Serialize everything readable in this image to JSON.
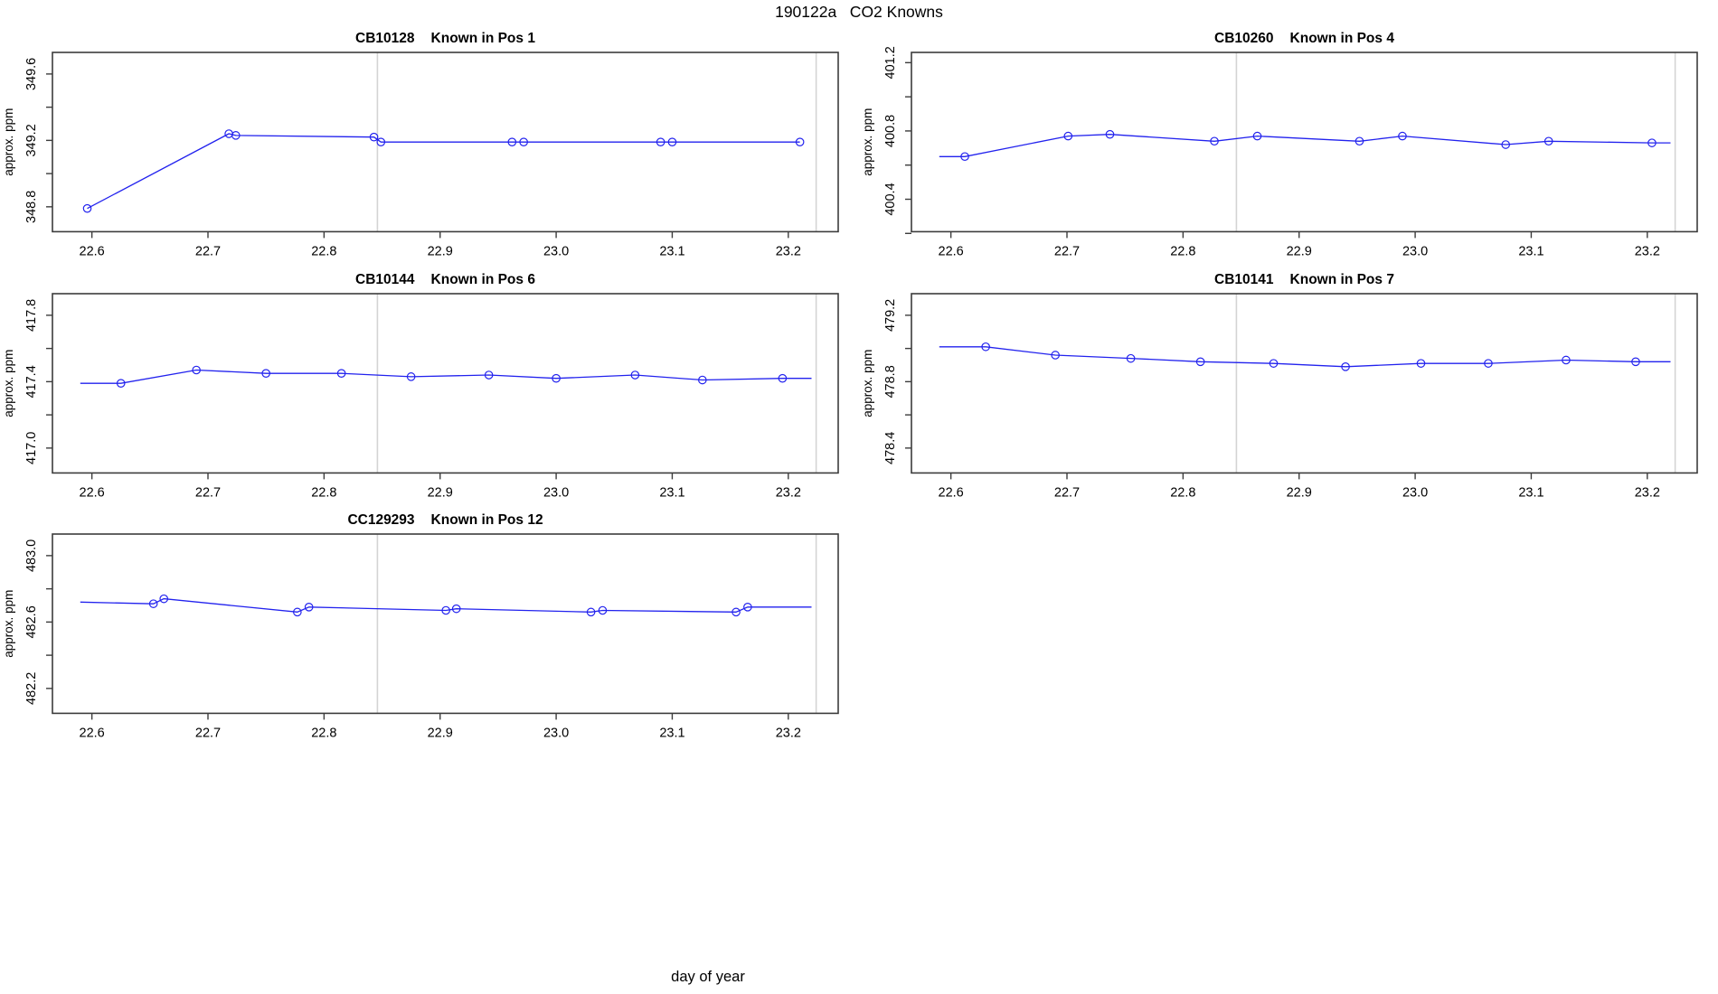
{
  "figure": {
    "title": "190122a   CO2 Knowns",
    "xlabel": "day of year",
    "ylabel": "approx. ppm",
    "line_color": "#2222ee",
    "vline_color": "#d4d4d4",
    "border_color": "#3c3c3c"
  },
  "chart_data": [
    {
      "type": "line",
      "title_id": "CB10128",
      "title_label": "Known in Pos 1",
      "slot": {
        "row": 0,
        "col": 0
      },
      "xlim": [
        22.566,
        23.243
      ],
      "ylim": [
        348.65,
        349.73
      ],
      "x_ticks": [
        22.6,
        22.7,
        22.8,
        22.9,
        23.0,
        23.1,
        23.2
      ],
      "y_ticks": [
        348.8,
        349.0,
        349.2,
        349.4,
        349.6
      ],
      "y_labeled_ticks": [
        348.8,
        349.2,
        349.6
      ],
      "vlines": [
        22.846,
        23.224
      ],
      "points": [
        [
          22.596,
          348.79
        ],
        [
          22.718,
          349.24
        ],
        [
          22.724,
          349.23
        ],
        [
          22.843,
          349.22
        ],
        [
          22.849,
          349.19
        ],
        [
          22.962,
          349.19
        ],
        [
          22.972,
          349.19
        ],
        [
          23.09,
          349.19
        ],
        [
          23.1,
          349.19
        ],
        [
          23.21,
          349.19
        ]
      ],
      "line_ext": {
        "start": null,
        "end": null
      }
    },
    {
      "type": "line",
      "title_id": "CB10260",
      "title_label": "Known in Pos 4",
      "slot": {
        "row": 0,
        "col": 1
      },
      "xlim": [
        22.566,
        23.243
      ],
      "ylim": [
        400.21,
        401.26
      ],
      "x_ticks": [
        22.6,
        22.7,
        22.8,
        22.9,
        23.0,
        23.1,
        23.2
      ],
      "y_ticks": [
        400.2,
        400.4,
        400.6,
        400.8,
        401.0,
        401.2
      ],
      "y_labeled_ticks": [
        400.4,
        400.8,
        401.2
      ],
      "vlines": [
        22.846,
        23.224
      ],
      "points": [
        [
          22.612,
          400.65
        ],
        [
          22.701,
          400.77
        ],
        [
          22.737,
          400.78
        ],
        [
          22.827,
          400.74
        ],
        [
          22.864,
          400.77
        ],
        [
          22.952,
          400.74
        ],
        [
          22.989,
          400.77
        ],
        [
          23.078,
          400.72
        ],
        [
          23.115,
          400.74
        ],
        [
          23.204,
          400.73
        ]
      ],
      "line_ext": {
        "start": [
          22.59,
          400.65
        ],
        "end": [
          23.22,
          400.73
        ]
      }
    },
    {
      "type": "line",
      "title_id": "CB10144",
      "title_label": "Known in Pos 6",
      "slot": {
        "row": 1,
        "col": 0
      },
      "xlim": [
        22.566,
        23.243
      ],
      "ylim": [
        416.85,
        417.93
      ],
      "x_ticks": [
        22.6,
        22.7,
        22.8,
        22.9,
        23.0,
        23.1,
        23.2
      ],
      "y_ticks": [
        417.0,
        417.2,
        417.4,
        417.6,
        417.8
      ],
      "y_labeled_ticks": [
        417.0,
        417.4,
        417.8
      ],
      "vlines": [
        22.846,
        23.224
      ],
      "points": [
        [
          22.625,
          417.39
        ],
        [
          22.69,
          417.47
        ],
        [
          22.75,
          417.45
        ],
        [
          22.815,
          417.45
        ],
        [
          22.875,
          417.43
        ],
        [
          22.942,
          417.44
        ],
        [
          23.0,
          417.42
        ],
        [
          23.068,
          417.44
        ],
        [
          23.126,
          417.41
        ],
        [
          23.195,
          417.42
        ]
      ],
      "line_ext": {
        "start": [
          22.59,
          417.39
        ],
        "end": [
          23.22,
          417.42
        ]
      }
    },
    {
      "type": "line",
      "title_id": "CB10141",
      "title_label": "Known in Pos 7",
      "slot": {
        "row": 1,
        "col": 1
      },
      "xlim": [
        22.566,
        23.243
      ],
      "ylim": [
        478.25,
        479.33
      ],
      "x_ticks": [
        22.6,
        22.7,
        22.8,
        22.9,
        23.0,
        23.1,
        23.2
      ],
      "y_ticks": [
        478.4,
        478.6,
        478.8,
        479.0,
        479.2
      ],
      "y_labeled_ticks": [
        478.4,
        478.8,
        479.2
      ],
      "vlines": [
        22.846,
        23.224
      ],
      "points": [
        [
          22.63,
          479.01
        ],
        [
          22.69,
          478.96
        ],
        [
          22.755,
          478.94
        ],
        [
          22.815,
          478.92
        ],
        [
          22.878,
          478.91
        ],
        [
          22.94,
          478.89
        ],
        [
          23.005,
          478.91
        ],
        [
          23.063,
          478.91
        ],
        [
          23.13,
          478.93
        ],
        [
          23.19,
          478.92
        ]
      ],
      "line_ext": {
        "start": [
          22.59,
          479.01
        ],
        "end": [
          23.22,
          478.92
        ]
      }
    },
    {
      "type": "line",
      "title_id": "CC129293",
      "title_label": "Known in Pos 12",
      "slot": {
        "row": 2,
        "col": 0
      },
      "xlim": [
        22.566,
        23.243
      ],
      "ylim": [
        482.05,
        483.13
      ],
      "x_ticks": [
        22.6,
        22.7,
        22.8,
        22.9,
        23.0,
        23.1,
        23.2
      ],
      "y_ticks": [
        482.2,
        482.4,
        482.6,
        482.8,
        483.0
      ],
      "y_labeled_ticks": [
        482.2,
        482.6,
        483.0
      ],
      "vlines": [
        22.846,
        23.224
      ],
      "points": [
        [
          22.653,
          482.71
        ],
        [
          22.662,
          482.74
        ],
        [
          22.777,
          482.66
        ],
        [
          22.787,
          482.69
        ],
        [
          22.905,
          482.67
        ],
        [
          22.914,
          482.68
        ],
        [
          23.03,
          482.66
        ],
        [
          23.04,
          482.67
        ],
        [
          23.155,
          482.66
        ],
        [
          23.165,
          482.69
        ]
      ],
      "line_ext": {
        "start": [
          22.59,
          482.72
        ],
        "end": [
          23.22,
          482.69
        ]
      }
    }
  ]
}
